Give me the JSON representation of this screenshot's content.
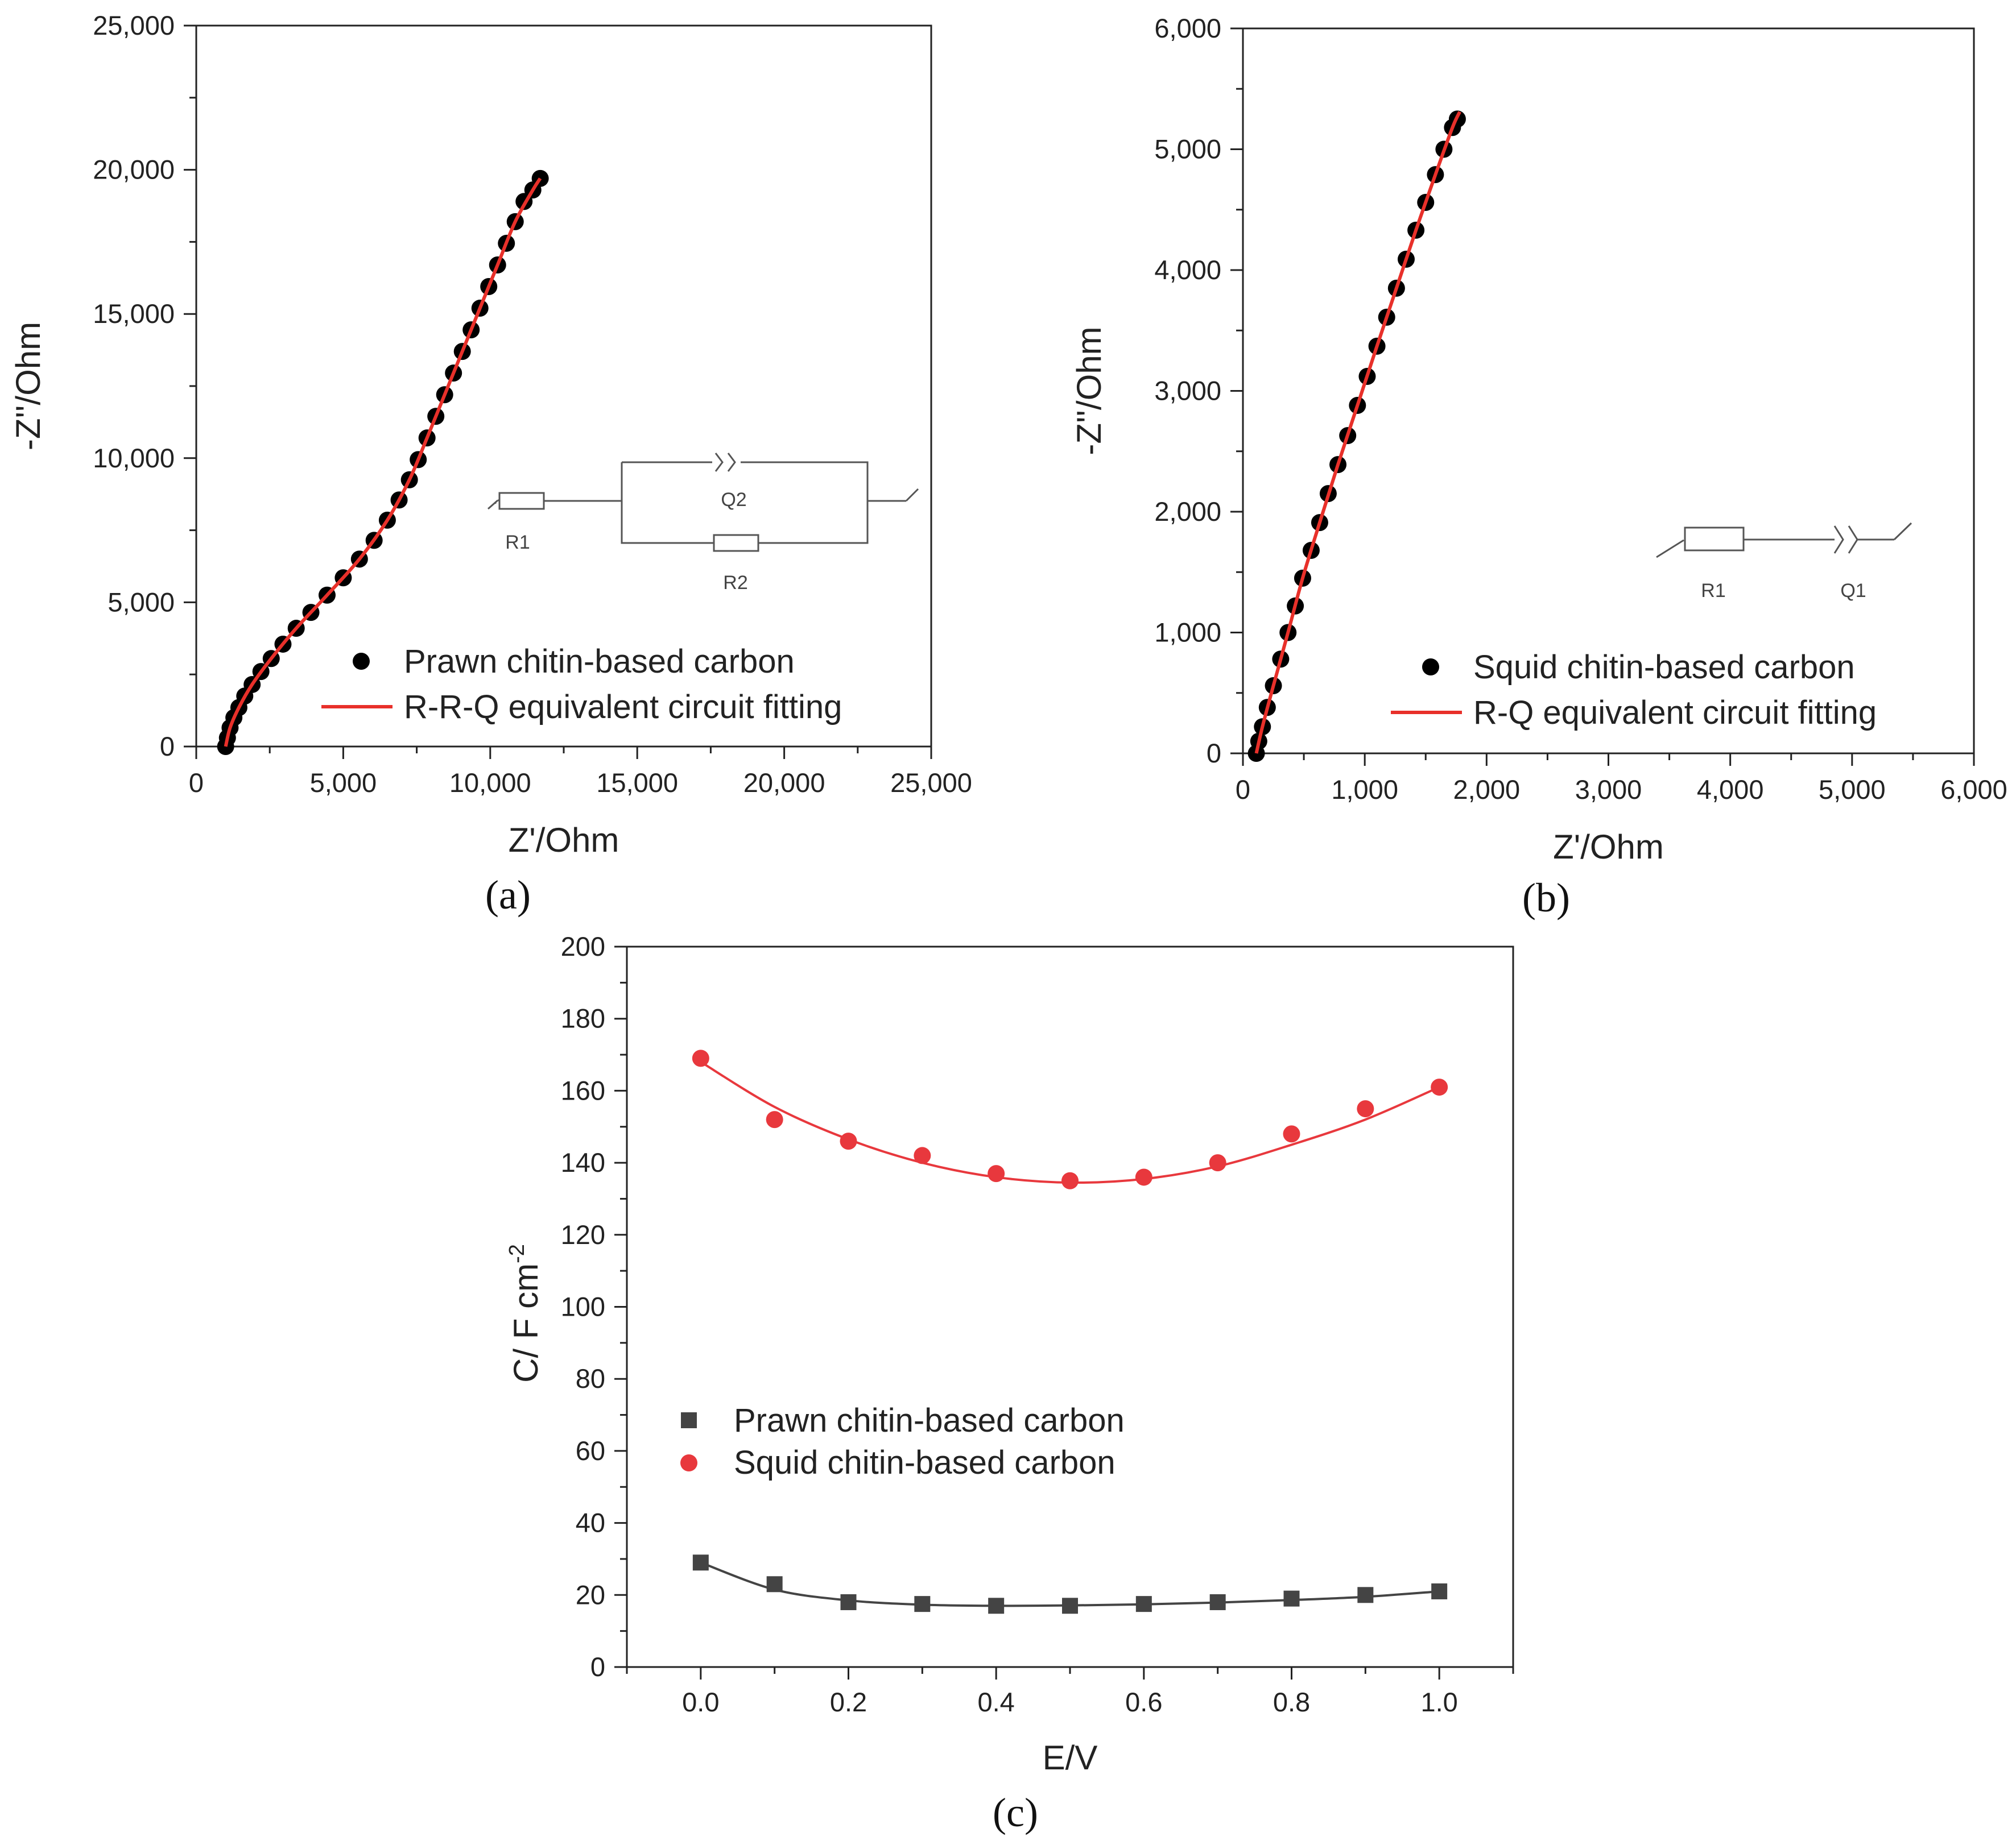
{
  "chart_data": [
    {
      "panel": "(a)",
      "type": "scatter",
      "xlabel": "Z'/Ohm",
      "ylabel": "-Z''/Ohm",
      "xlim": [
        0,
        25000
      ],
      "ylim": [
        0,
        25000
      ],
      "xticks": [
        "0",
        "5,000",
        "10,000",
        "15,000",
        "20,000",
        "25,000"
      ],
      "yticks": [
        "0",
        "5,000",
        "10,000",
        "15,000",
        "20,000",
        "25,000"
      ],
      "legend": [
        "Prawn chitin-based carbon",
        "R-R-Q equivalent circuit fitting"
      ],
      "legend_position": "bottom-right",
      "circuit_labels": [
        "R1",
        "Q2",
        "R2"
      ],
      "series": [
        {
          "name": "Prawn chitin-based carbon",
          "marker": "circle",
          "color": "#000000",
          "x": [
            1000,
            1060,
            1150,
            1280,
            1450,
            1650,
            1900,
            2200,
            2550,
            2950,
            3400,
            3900,
            4450,
            5000,
            5550,
            6050,
            6500,
            6900,
            7250,
            7550,
            7850,
            8150,
            8450,
            8750,
            9050,
            9350,
            9650,
            9950,
            10250,
            10550,
            10850,
            11150,
            11450,
            11700
          ],
          "y": [
            0,
            300,
            650,
            1000,
            1350,
            1750,
            2150,
            2600,
            3050,
            3550,
            4100,
            4650,
            5250,
            5850,
            6500,
            7150,
            7850,
            8550,
            9250,
            9950,
            10700,
            11450,
            12200,
            12950,
            13700,
            14450,
            15200,
            15950,
            16700,
            17450,
            18200,
            18900,
            19300,
            19700
          ]
        },
        {
          "name": "R-R-Q equivalent circuit fitting",
          "marker": "line",
          "color": "#e8302a",
          "x": [
            1000,
            1150,
            1450,
            1900,
            2550,
            3400,
            4450,
            5550,
            6500,
            7250,
            7850,
            8450,
            9050,
            9650,
            10250,
            10850,
            11450,
            11700
          ],
          "y": [
            0,
            650,
            1350,
            2150,
            3050,
            4100,
            5250,
            6500,
            7850,
            9250,
            10700,
            12200,
            13700,
            15200,
            16700,
            18200,
            19300,
            19700
          ]
        }
      ]
    },
    {
      "panel": "(b)",
      "type": "scatter",
      "xlabel": "Z'/Ohm",
      "ylabel": "-Z''/Ohm",
      "xlim": [
        0,
        6000
      ],
      "ylim": [
        0,
        6000
      ],
      "xticks": [
        "0",
        "1,000",
        "2,000",
        "3,000",
        "4,000",
        "5,000",
        "6,000"
      ],
      "yticks": [
        "0",
        "1,000",
        "2,000",
        "3,000",
        "4,000",
        "5,000",
        "6,000"
      ],
      "legend": [
        "Squid chitin-based carbon",
        "R-Q equivalent circuit fitting"
      ],
      "legend_position": "bottom-right",
      "circuit_labels": [
        "R1",
        "Q1"
      ],
      "series": [
        {
          "name": "Squid chitin-based carbon",
          "marker": "circle",
          "color": "#000000",
          "x": [
            110,
            130,
            160,
            200,
            250,
            310,
            370,
            430,
            490,
            560,
            630,
            700,
            780,
            860,
            940,
            1020,
            1100,
            1180,
            1260,
            1340,
            1420,
            1500,
            1580,
            1650,
            1720,
            1760
          ],
          "y": [
            0,
            100,
            220,
            380,
            560,
            780,
            1000,
            1220,
            1450,
            1680,
            1910,
            2150,
            2390,
            2630,
            2880,
            3120,
            3370,
            3610,
            3850,
            4090,
            4330,
            4560,
            4790,
            5000,
            5180,
            5250
          ]
        },
        {
          "name": "R-Q equivalent circuit fitting",
          "marker": "line",
          "color": "#e8302a",
          "x": [
            110,
            160,
            250,
            370,
            490,
            630,
            780,
            940,
            1100,
            1260,
            1420,
            1580,
            1720,
            1780
          ],
          "y": [
            0,
            220,
            560,
            1000,
            1450,
            1910,
            2390,
            2880,
            3370,
            3850,
            4330,
            4790,
            5180,
            5310
          ]
        }
      ]
    },
    {
      "panel": "(c)",
      "type": "scatter",
      "xlabel": "E/V",
      "ylabel_main": "C/ F cm",
      "ylabel_sup": "-2",
      "xlim": [
        -0.1,
        1.1
      ],
      "ylim": [
        0,
        200
      ],
      "xticks": [
        "0.0",
        "0.2",
        "0.4",
        "0.6",
        "0.8",
        "1.0"
      ],
      "yticks": [
        "0",
        "20",
        "40",
        "60",
        "80",
        "100",
        "120",
        "140",
        "160",
        "180",
        "200"
      ],
      "legend_position": "middle-left",
      "series": [
        {
          "name": "Prawn chitin-based carbon",
          "marker": "square",
          "color": "#444444",
          "x": [
            0.0,
            0.1,
            0.2,
            0.3,
            0.4,
            0.5,
            0.6,
            0.7,
            0.8,
            0.9,
            1.0
          ],
          "y": [
            29,
            23,
            18,
            17.5,
            17,
            17,
            17.5,
            18,
            19,
            20,
            21
          ],
          "fit": [
            29,
            21.5,
            18.5,
            17.3,
            17,
            17.1,
            17.4,
            17.9,
            18.6,
            19.5,
            21
          ]
        },
        {
          "name": "Squid chitin-based carbon",
          "marker": "circle",
          "color": "#e8383d",
          "x": [
            0.0,
            0.1,
            0.2,
            0.3,
            0.4,
            0.5,
            0.6,
            0.7,
            0.8,
            0.9,
            1.0
          ],
          "y": [
            169,
            152,
            146,
            142,
            137,
            135,
            136,
            140,
            148,
            155,
            161
          ],
          "fit": [
            168,
            155.5,
            146.5,
            140,
            136,
            134.5,
            135.5,
            139,
            145,
            152,
            161
          ]
        }
      ]
    }
  ]
}
